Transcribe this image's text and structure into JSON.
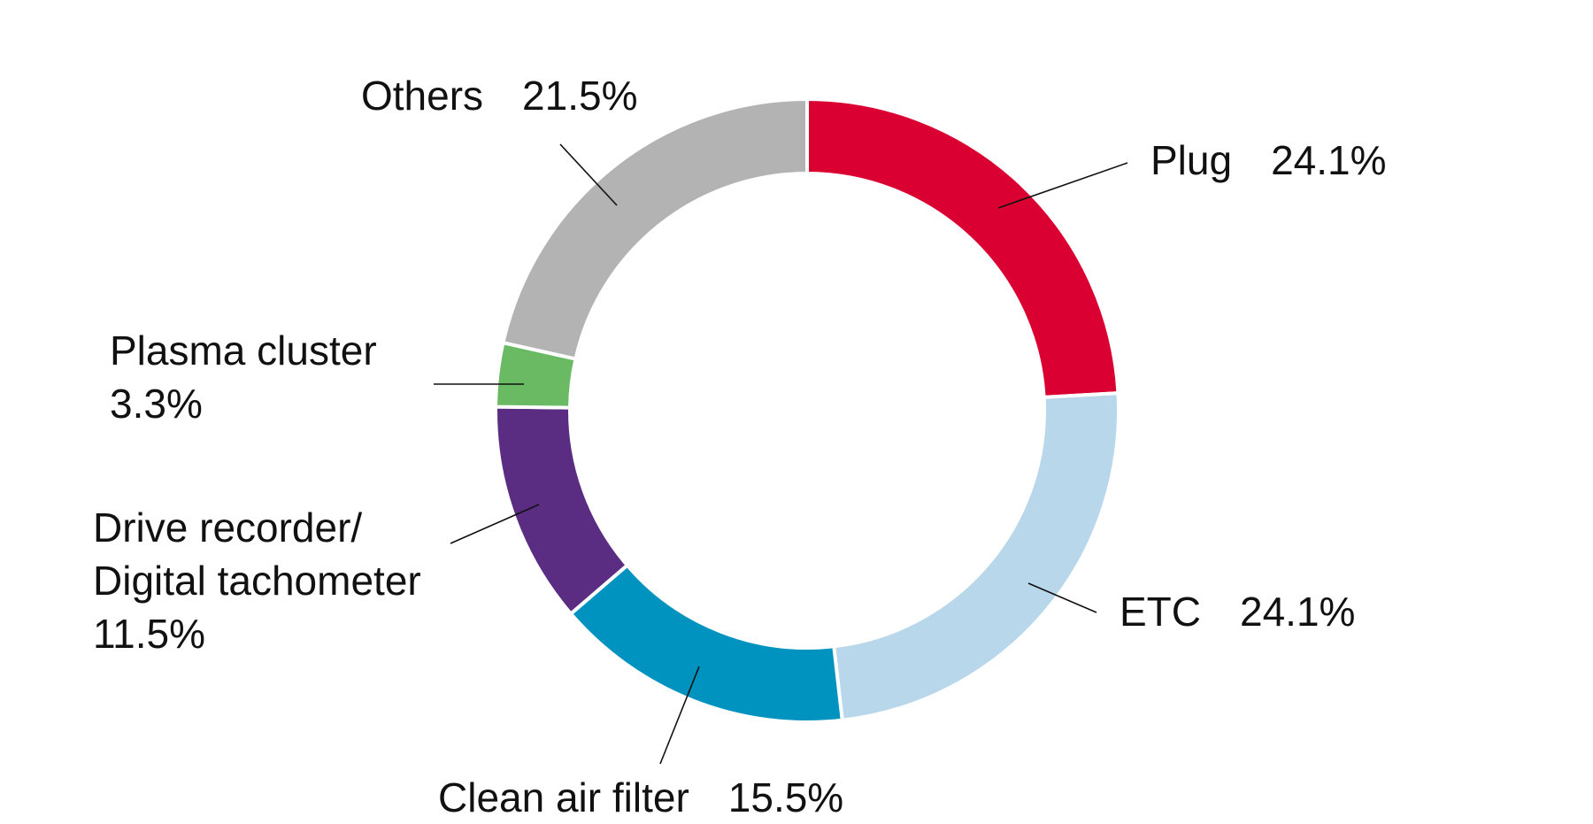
{
  "chart_data": {
    "type": "pie",
    "donut": true,
    "categories": [
      "Plug",
      "ETC",
      "Clean air filter",
      "Drive recorder/\nDigital tachometer",
      "Plasma cluster",
      "Others"
    ],
    "values": [
      24.1,
      24.1,
      15.5,
      11.5,
      3.3,
      21.5
    ],
    "value_labels": [
      "24.1%",
      "24.1%",
      "15.5%",
      "11.5%",
      "3.3%",
      "21.5%"
    ],
    "colors": [
      "#db0032",
      "#b8d7ea",
      "#0093c0",
      "#5b2d82",
      "#6aba63",
      "#b3b3b3"
    ]
  }
}
